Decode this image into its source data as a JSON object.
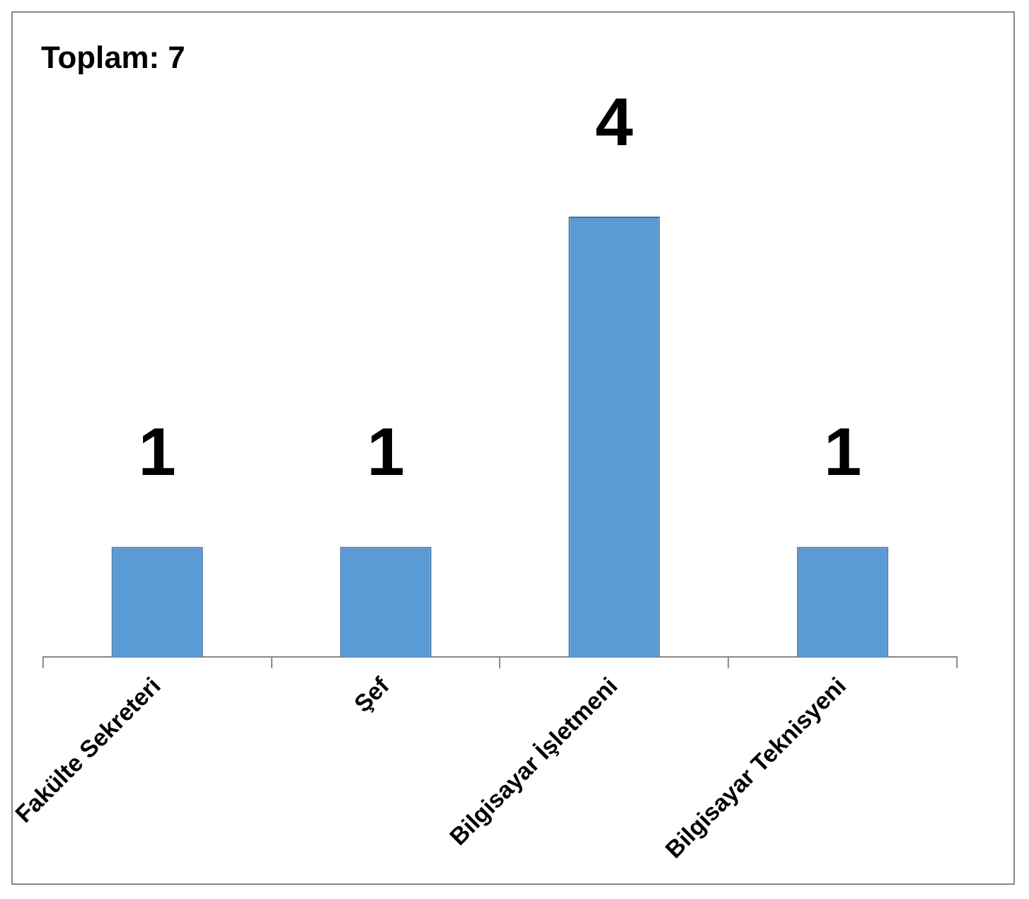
{
  "chart_data": {
    "type": "bar",
    "title": "Toplam: 7",
    "categories": [
      "Fakülte Sekreteri",
      "Şef",
      "Bilgisayar İşletmeni",
      "Bilgisayar Teknisyeni"
    ],
    "values": [
      1,
      1,
      4,
      1
    ],
    "color": "#5b9bd5",
    "data_labels": true,
    "grid": false,
    "legend": false
  }
}
